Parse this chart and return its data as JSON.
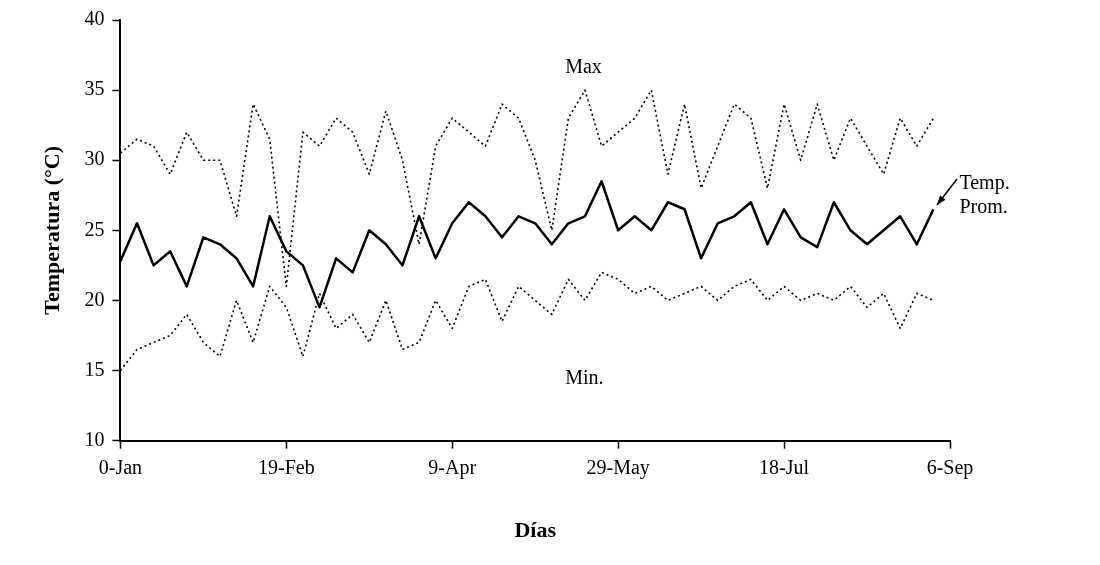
{
  "chart_data": {
    "type": "line",
    "xlabel": "Días",
    "ylabel": "Temperatura (°C)",
    "marker": "none",
    "legend": "right",
    "grid": false,
    "categories": [
      "0-Jan",
      null,
      null,
      null,
      null,
      null,
      null,
      null,
      null,
      null,
      "19-Feb",
      null,
      null,
      null,
      null,
      null,
      null,
      null,
      null,
      null,
      "9-Apr",
      null,
      null,
      null,
      null,
      null,
      null,
      null,
      null,
      null,
      "29-May",
      null,
      null,
      null,
      null,
      null,
      null,
      null,
      null,
      null,
      "18-Jul",
      null,
      null,
      null,
      null,
      null,
      null,
      null,
      null,
      null,
      "6-Sep"
    ],
    "ylim": [
      10,
      40
    ],
    "yticks": [
      10,
      15,
      20,
      25,
      30,
      35,
      40
    ],
    "series": [
      {
        "name": "Max",
        "color": "#000000",
        "line_style": "dotted",
        "values": [
          30.5,
          31.5,
          31,
          29,
          32,
          30,
          30,
          26,
          34,
          31.5,
          21,
          32,
          31,
          33,
          32,
          29,
          33.5,
          30,
          24,
          31,
          33,
          32,
          31,
          34,
          33,
          30,
          25,
          33,
          35,
          31,
          32,
          33,
          35,
          29,
          34,
          28,
          31,
          34,
          33,
          28,
          34,
          30,
          34,
          30,
          33,
          31,
          29,
          33,
          31,
          33,
          null
        ]
      },
      {
        "name": "Temp. Prom.",
        "color": "#000000",
        "line_style": "solid",
        "values": [
          22.8,
          25.5,
          22.5,
          23.5,
          21,
          24.5,
          24,
          23,
          21,
          26,
          23.5,
          22.5,
          19.5,
          23,
          22,
          25,
          24,
          22.5,
          26,
          23,
          25.5,
          27,
          26,
          24.5,
          26,
          25.5,
          24,
          25.5,
          26,
          28.5,
          25,
          26,
          25,
          27,
          26.5,
          23,
          25.5,
          26,
          27,
          24,
          26.5,
          24.5,
          23.8,
          27,
          25,
          24,
          25,
          26,
          24,
          26.5,
          null
        ]
      },
      {
        "name": "Min.",
        "color": "#000000",
        "line_style": "dotted",
        "values": [
          15,
          16.5,
          17,
          17.5,
          19,
          17,
          16,
          20,
          17,
          21,
          19.5,
          16,
          20.5,
          18,
          19,
          17,
          20,
          16.5,
          17,
          20,
          18,
          21,
          21.5,
          18.5,
          21,
          20,
          19,
          21.5,
          20,
          22,
          21.5,
          20.5,
          21,
          20,
          20.5,
          21,
          20,
          21,
          21.5,
          20,
          21,
          20,
          20.5,
          20,
          21,
          19.5,
          20.5,
          18,
          20.5,
          20,
          null
        ]
      }
    ]
  }
}
